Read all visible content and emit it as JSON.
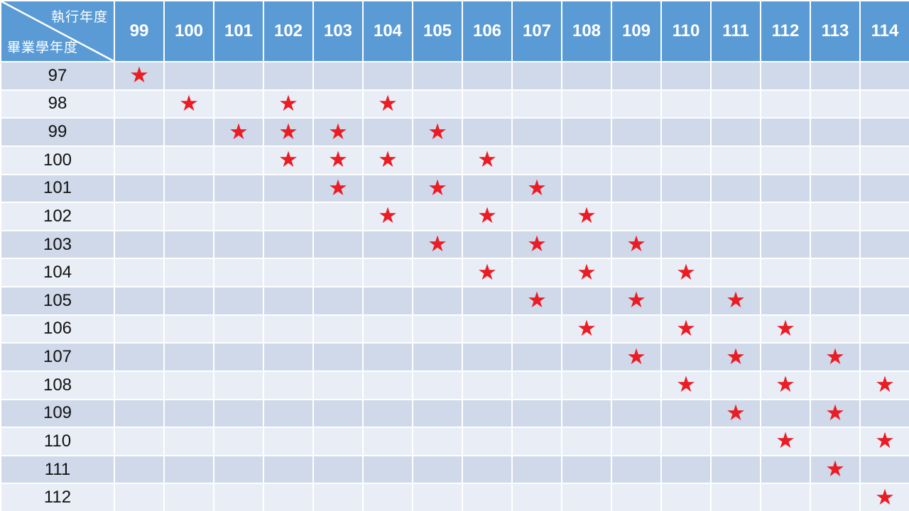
{
  "chart_data": {
    "type": "table",
    "x_label": "執行年度",
    "y_label": "畢業學年度",
    "columns": [
      "99",
      "100",
      "101",
      "102",
      "103",
      "104",
      "105",
      "106",
      "107",
      "108",
      "109",
      "110",
      "111",
      "112",
      "113",
      "114"
    ],
    "rows": [
      {
        "label": "97",
        "stars": [
          "99"
        ]
      },
      {
        "label": "98",
        "stars": [
          "100",
          "102",
          "104"
        ]
      },
      {
        "label": "99",
        "stars": [
          "101",
          "102",
          "103",
          "105"
        ]
      },
      {
        "label": "100",
        "stars": [
          "102",
          "103",
          "104",
          "106"
        ]
      },
      {
        "label": "101",
        "stars": [
          "103",
          "105",
          "107"
        ]
      },
      {
        "label": "102",
        "stars": [
          "104",
          "106",
          "108"
        ]
      },
      {
        "label": "103",
        "stars": [
          "105",
          "107",
          "109"
        ]
      },
      {
        "label": "104",
        "stars": [
          "106",
          "108",
          "110"
        ]
      },
      {
        "label": "105",
        "stars": [
          "107",
          "109",
          "111"
        ]
      },
      {
        "label": "106",
        "stars": [
          "108",
          "110",
          "112"
        ]
      },
      {
        "label": "107",
        "stars": [
          "109",
          "111",
          "113"
        ]
      },
      {
        "label": "108",
        "stars": [
          "110",
          "112",
          "114"
        ]
      },
      {
        "label": "109",
        "stars": [
          "111",
          "113"
        ]
      },
      {
        "label": "110",
        "stars": [
          "112",
          "114"
        ]
      },
      {
        "label": "111",
        "stars": [
          "113"
        ]
      },
      {
        "label": "112",
        "stars": [
          "114"
        ]
      }
    ],
    "marker_glyph": "★"
  },
  "colors": {
    "header_bg": "#5b9bd5",
    "header_text": "#ffffff",
    "band_dark": "#cfd9ea",
    "band_light": "#e9edf6",
    "gap": "#ffffff",
    "star": "#ea1c24",
    "label_text": "#111111"
  }
}
